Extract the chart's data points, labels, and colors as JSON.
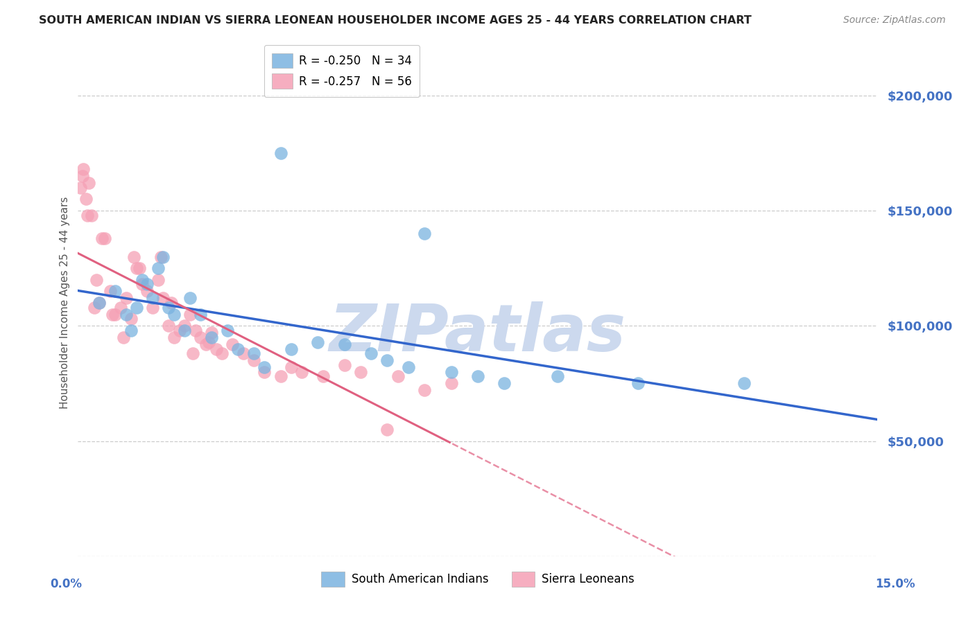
{
  "title": "SOUTH AMERICAN INDIAN VS SIERRA LEONEAN HOUSEHOLDER INCOME AGES 25 - 44 YEARS CORRELATION CHART",
  "source": "Source: ZipAtlas.com",
  "ylabel": "Householder Income Ages 25 - 44 years",
  "xlim": [
    0.0,
    15.0
  ],
  "ylim": [
    0,
    220000
  ],
  "yticks": [
    50000,
    100000,
    150000,
    200000
  ],
  "ytick_labels": [
    "$50,000",
    "$100,000",
    "$150,000",
    "$200,000"
  ],
  "grid_color": "#cccccc",
  "watermark": "ZIPatlas",
  "watermark_color": "#ccd9ee",
  "bg_color": "#ffffff",
  "blue_color": "#7ab3e0",
  "pink_color": "#f5a0b5",
  "blue_line_color": "#3366cc",
  "pink_line_color": "#e06080",
  "series_blue": {
    "name": "South American Indians",
    "x": [
      0.4,
      0.7,
      0.9,
      1.0,
      1.1,
      1.2,
      1.3,
      1.4,
      1.5,
      1.6,
      1.7,
      1.8,
      2.0,
      2.1,
      2.3,
      2.5,
      2.8,
      3.0,
      3.3,
      3.5,
      4.0,
      4.5,
      5.0,
      5.5,
      5.8,
      6.2,
      7.0,
      7.5,
      8.0,
      9.0,
      10.5,
      12.5,
      3.8,
      6.5
    ],
    "y": [
      110000,
      115000,
      105000,
      98000,
      108000,
      120000,
      118000,
      112000,
      125000,
      130000,
      108000,
      105000,
      98000,
      112000,
      105000,
      95000,
      98000,
      90000,
      88000,
      82000,
      90000,
      93000,
      92000,
      88000,
      85000,
      82000,
      80000,
      78000,
      75000,
      78000,
      75000,
      75000,
      175000,
      140000
    ]
  },
  "series_pink": {
    "name": "Sierra Leoneans",
    "x": [
      0.05,
      0.1,
      0.15,
      0.2,
      0.25,
      0.3,
      0.35,
      0.4,
      0.5,
      0.6,
      0.7,
      0.8,
      0.9,
      1.0,
      1.05,
      1.1,
      1.2,
      1.3,
      1.4,
      1.5,
      1.6,
      1.7,
      1.8,
      1.9,
      2.0,
      2.1,
      2.2,
      2.3,
      2.4,
      2.5,
      2.6,
      2.7,
      2.9,
      3.1,
      3.3,
      3.5,
      3.8,
      4.0,
      4.2,
      4.6,
      5.0,
      5.3,
      6.0,
      6.5,
      7.0,
      0.08,
      0.18,
      0.45,
      0.65,
      0.85,
      1.15,
      1.55,
      1.75,
      2.15,
      2.45,
      5.8
    ],
    "y": [
      160000,
      168000,
      155000,
      162000,
      148000,
      108000,
      120000,
      110000,
      138000,
      115000,
      105000,
      108000,
      112000,
      103000,
      130000,
      125000,
      118000,
      115000,
      108000,
      120000,
      112000,
      100000,
      95000,
      98000,
      100000,
      105000,
      98000,
      95000,
      92000,
      97000,
      90000,
      88000,
      92000,
      88000,
      85000,
      80000,
      78000,
      82000,
      80000,
      78000,
      83000,
      80000,
      78000,
      72000,
      75000,
      165000,
      148000,
      138000,
      105000,
      95000,
      125000,
      130000,
      110000,
      88000,
      93000,
      55000
    ]
  },
  "title_color": "#222222",
  "title_fontsize": 11.5,
  "axis_label_color": "#555555",
  "source_color": "#888888",
  "legend_r_blue": "R = -0.250",
  "legend_n_blue": "N = 34",
  "legend_r_pink": "R = -0.257",
  "legend_n_pink": "N = 56"
}
